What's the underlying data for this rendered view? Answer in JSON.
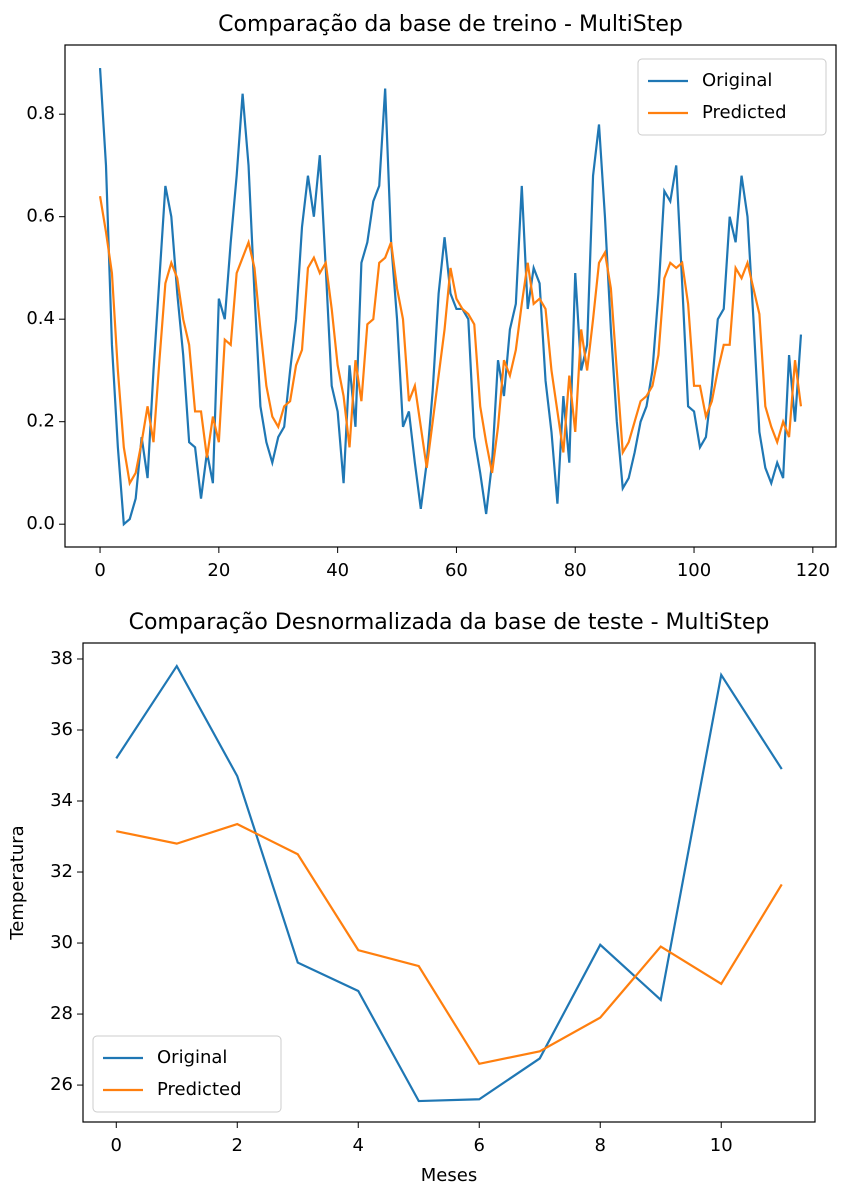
{
  "chart_data": [
    {
      "type": "line",
      "title": "Comparação da base de treino - MultiStep",
      "x": [
        0,
        1,
        2,
        3,
        4,
        5,
        6,
        7,
        8,
        9,
        10,
        11,
        12,
        13,
        14,
        15,
        16,
        17,
        18,
        19,
        20,
        21,
        22,
        23,
        24,
        25,
        26,
        27,
        28,
        29,
        30,
        31,
        32,
        33,
        34,
        35,
        36,
        37,
        38,
        39,
        40,
        41,
        42,
        43,
        44,
        45,
        46,
        47,
        48,
        49,
        50,
        51,
        52,
        53,
        54,
        55,
        56,
        57,
        58,
        59,
        60,
        61,
        62,
        63,
        64,
        65,
        66,
        67,
        68,
        69,
        70,
        71,
        72,
        73,
        74,
        75,
        76,
        77,
        78,
        79,
        80,
        81,
        82,
        83,
        84,
        85,
        86,
        87,
        88,
        89,
        90,
        91,
        92,
        93,
        94,
        95,
        96,
        97,
        98,
        99,
        100,
        101,
        102,
        103,
        104,
        105,
        106,
        107,
        108,
        109,
        110,
        111,
        112,
        113,
        114,
        115,
        116,
        117,
        118
      ],
      "series": [
        {
          "name": "Original",
          "color": "#1f77b4",
          "values": [
            0.89,
            0.7,
            0.35,
            0.15,
            0.0,
            0.01,
            0.05,
            0.17,
            0.09,
            0.3,
            0.48,
            0.66,
            0.6,
            0.45,
            0.33,
            0.16,
            0.15,
            0.05,
            0.14,
            0.08,
            0.44,
            0.4,
            0.55,
            0.68,
            0.84,
            0.7,
            0.45,
            0.23,
            0.16,
            0.12,
            0.17,
            0.19,
            0.3,
            0.4,
            0.58,
            0.68,
            0.6,
            0.72,
            0.5,
            0.27,
            0.22,
            0.08,
            0.31,
            0.19,
            0.51,
            0.55,
            0.63,
            0.66,
            0.85,
            0.55,
            0.4,
            0.19,
            0.22,
            0.12,
            0.03,
            0.12,
            0.26,
            0.45,
            0.56,
            0.45,
            0.42,
            0.42,
            0.4,
            0.17,
            0.1,
            0.02,
            0.12,
            0.32,
            0.25,
            0.38,
            0.43,
            0.66,
            0.42,
            0.5,
            0.47,
            0.28,
            0.18,
            0.04,
            0.25,
            0.12,
            0.49,
            0.3,
            0.35,
            0.68,
            0.78,
            0.6,
            0.38,
            0.2,
            0.07,
            0.09,
            0.14,
            0.2,
            0.23,
            0.3,
            0.45,
            0.65,
            0.63,
            0.7,
            0.47,
            0.23,
            0.22,
            0.15,
            0.17,
            0.27,
            0.4,
            0.42,
            0.6,
            0.55,
            0.68,
            0.6,
            0.4,
            0.18,
            0.11,
            0.08,
            0.12,
            0.09,
            0.33,
            0.2,
            0.37
          ]
        },
        {
          "name": "Predicted",
          "color": "#ff7f0e",
          "values": [
            0.64,
            0.57,
            0.49,
            0.3,
            0.15,
            0.08,
            0.1,
            0.16,
            0.23,
            0.16,
            0.32,
            0.47,
            0.51,
            0.48,
            0.4,
            0.35,
            0.22,
            0.22,
            0.13,
            0.21,
            0.16,
            0.36,
            0.35,
            0.49,
            0.52,
            0.55,
            0.5,
            0.38,
            0.27,
            0.21,
            0.19,
            0.23,
            0.24,
            0.31,
            0.34,
            0.5,
            0.52,
            0.49,
            0.51,
            0.42,
            0.31,
            0.25,
            0.15,
            0.32,
            0.24,
            0.39,
            0.4,
            0.51,
            0.52,
            0.55,
            0.46,
            0.4,
            0.24,
            0.27,
            0.19,
            0.11,
            0.2,
            0.29,
            0.38,
            0.5,
            0.44,
            0.42,
            0.41,
            0.39,
            0.23,
            0.16,
            0.1,
            0.19,
            0.32,
            0.29,
            0.34,
            0.43,
            0.51,
            0.43,
            0.44,
            0.42,
            0.3,
            0.22,
            0.14,
            0.29,
            0.18,
            0.38,
            0.3,
            0.4,
            0.51,
            0.53,
            0.46,
            0.3,
            0.14,
            0.16,
            0.2,
            0.24,
            0.25,
            0.27,
            0.33,
            0.48,
            0.51,
            0.5,
            0.51,
            0.43,
            0.27,
            0.27,
            0.21,
            0.24,
            0.3,
            0.35,
            0.35,
            0.5,
            0.48,
            0.51,
            0.46,
            0.41,
            0.23,
            0.19,
            0.16,
            0.2,
            0.17,
            0.32,
            0.23
          ]
        }
      ],
      "xlim": [
        -5.9,
        123.9
      ],
      "xticks": [
        0,
        20,
        40,
        60,
        80,
        100,
        120
      ],
      "ylim": [
        -0.0445,
        0.935
      ],
      "yticks": [
        {
          "value": 0,
          "label": "0.0"
        },
        0.2,
        0.4,
        0.6,
        0.8
      ],
      "legend": "upper-right"
    },
    {
      "type": "line",
      "title": "Comparação Desnormalizada da base de teste - MultiStep",
      "x_label": "Meses",
      "y_label": "Temperatura",
      "x": [
        0,
        1,
        2,
        3,
        4,
        5,
        6,
        7,
        8,
        9,
        10,
        11
      ],
      "series": [
        {
          "name": "Original",
          "color": "#1f77b4",
          "values": [
            35.2,
            37.8,
            34.7,
            29.45,
            28.65,
            25.55,
            25.6,
            26.75,
            29.95,
            28.4,
            37.55,
            34.9
          ]
        },
        {
          "name": "Predicted",
          "color": "#ff7f0e",
          "values": [
            33.15,
            32.8,
            33.35,
            32.5,
            29.8,
            29.35,
            26.6,
            26.95,
            27.9,
            29.9,
            28.85,
            31.65
          ]
        }
      ],
      "xlim": [
        -0.55,
        11.55
      ],
      "xticks": [
        0,
        2,
        4,
        6,
        8,
        10
      ],
      "ylim": [
        24.96,
        38.45
      ],
      "yticks": [
        26,
        28,
        30,
        32,
        34,
        36,
        38
      ],
      "legend": "lower-left"
    }
  ]
}
